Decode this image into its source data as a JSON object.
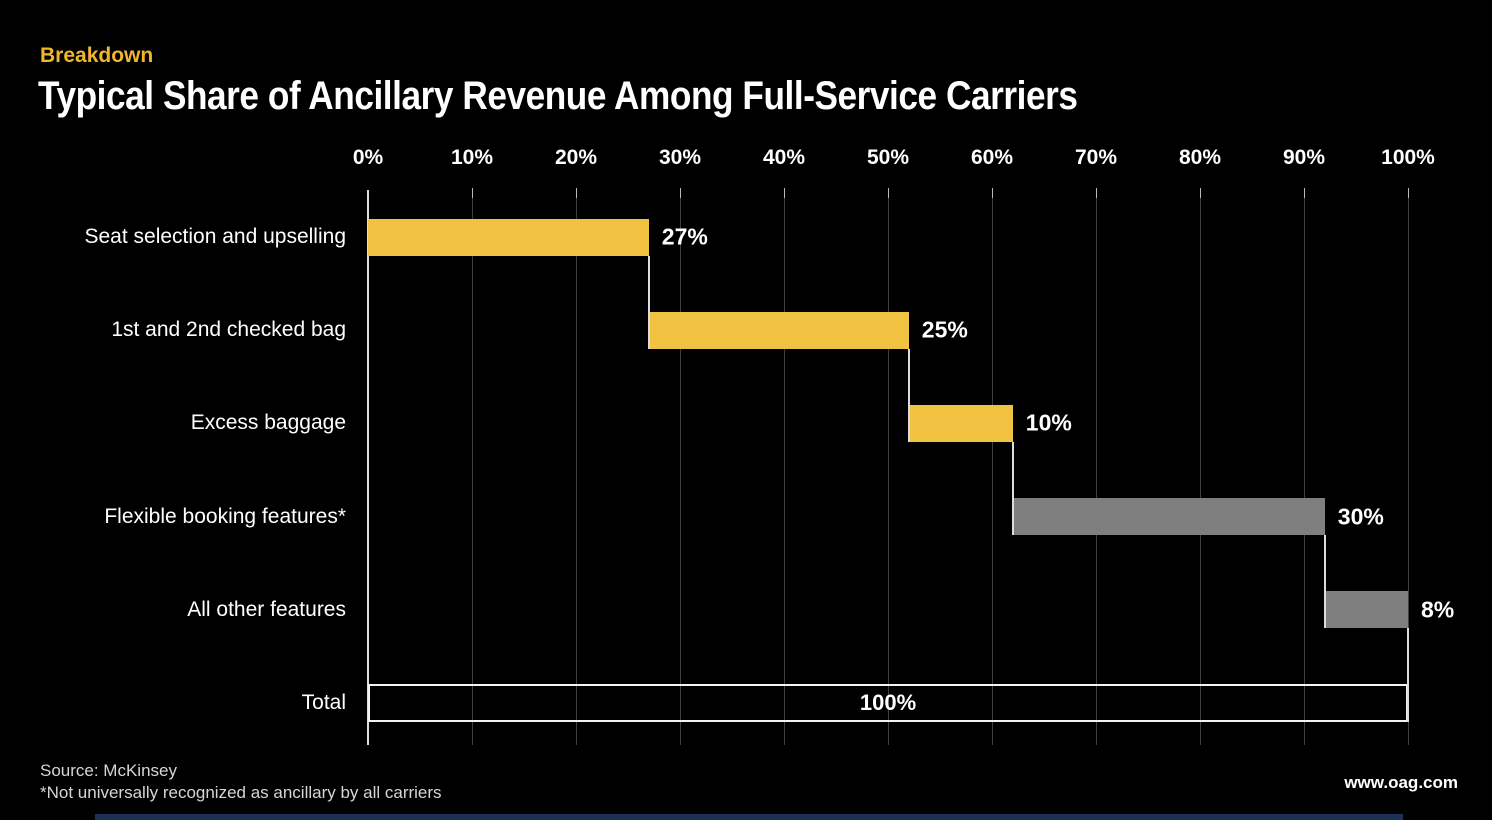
{
  "header": {
    "kicker": "Breakdown",
    "title": "Typical Share of Ancillary Revenue Among Full-Service Carriers"
  },
  "footer": {
    "source": "Source: McKinsey",
    "note": "*Not universally recognized as ancillary by all carriers",
    "website": "www.oag.com"
  },
  "colors": {
    "background": "#000000",
    "kicker_yellow": "#F0B62C",
    "ancillary_yellow": "#F2C343",
    "other_gray": "#7F7F7F",
    "gridline": "#3F3F3F",
    "axis_white": "#DEDEDE",
    "total_border": "#F2F2F2"
  },
  "chart_data": {
    "type": "bar",
    "subtype": "horizontal-waterfall",
    "title": "Typical Share of Ancillary Revenue Among Full-Service Carriers",
    "kicker": "Breakdown",
    "xlabel": "",
    "ylabel": "",
    "xlim": [
      0,
      100
    ],
    "grid": "vertical",
    "legend": "none",
    "x_ticks": [
      "0%",
      "10%",
      "20%",
      "30%",
      "40%",
      "50%",
      "60%",
      "70%",
      "80%",
      "90%",
      "100%"
    ],
    "categories": [
      "Seat selection and upselling",
      "1st and 2nd checked bag",
      "Excess baggage",
      "Flexible booking features*",
      "All other features",
      "Total"
    ],
    "segments": [
      {
        "label": "Seat selection and upselling",
        "start": 0,
        "value": 27,
        "value_label": "27%",
        "color": "#F2C343"
      },
      {
        "label": "1st and 2nd checked bag",
        "start": 27,
        "value": 25,
        "value_label": "25%",
        "color": "#F2C343"
      },
      {
        "label": "Excess baggage",
        "start": 52,
        "value": 10,
        "value_label": "10%",
        "color": "#F2C343"
      },
      {
        "label": "Flexible booking features*",
        "start": 62,
        "value": 30,
        "value_label": "30%",
        "color": "#7F7F7F"
      },
      {
        "label": "All other features",
        "start": 92,
        "value": 8,
        "value_label": "8%",
        "color": "#7F7F7F"
      }
    ],
    "total": {
      "label": "Total",
      "start": 0,
      "value": 100,
      "value_label": "100%",
      "style": "outlined"
    }
  }
}
